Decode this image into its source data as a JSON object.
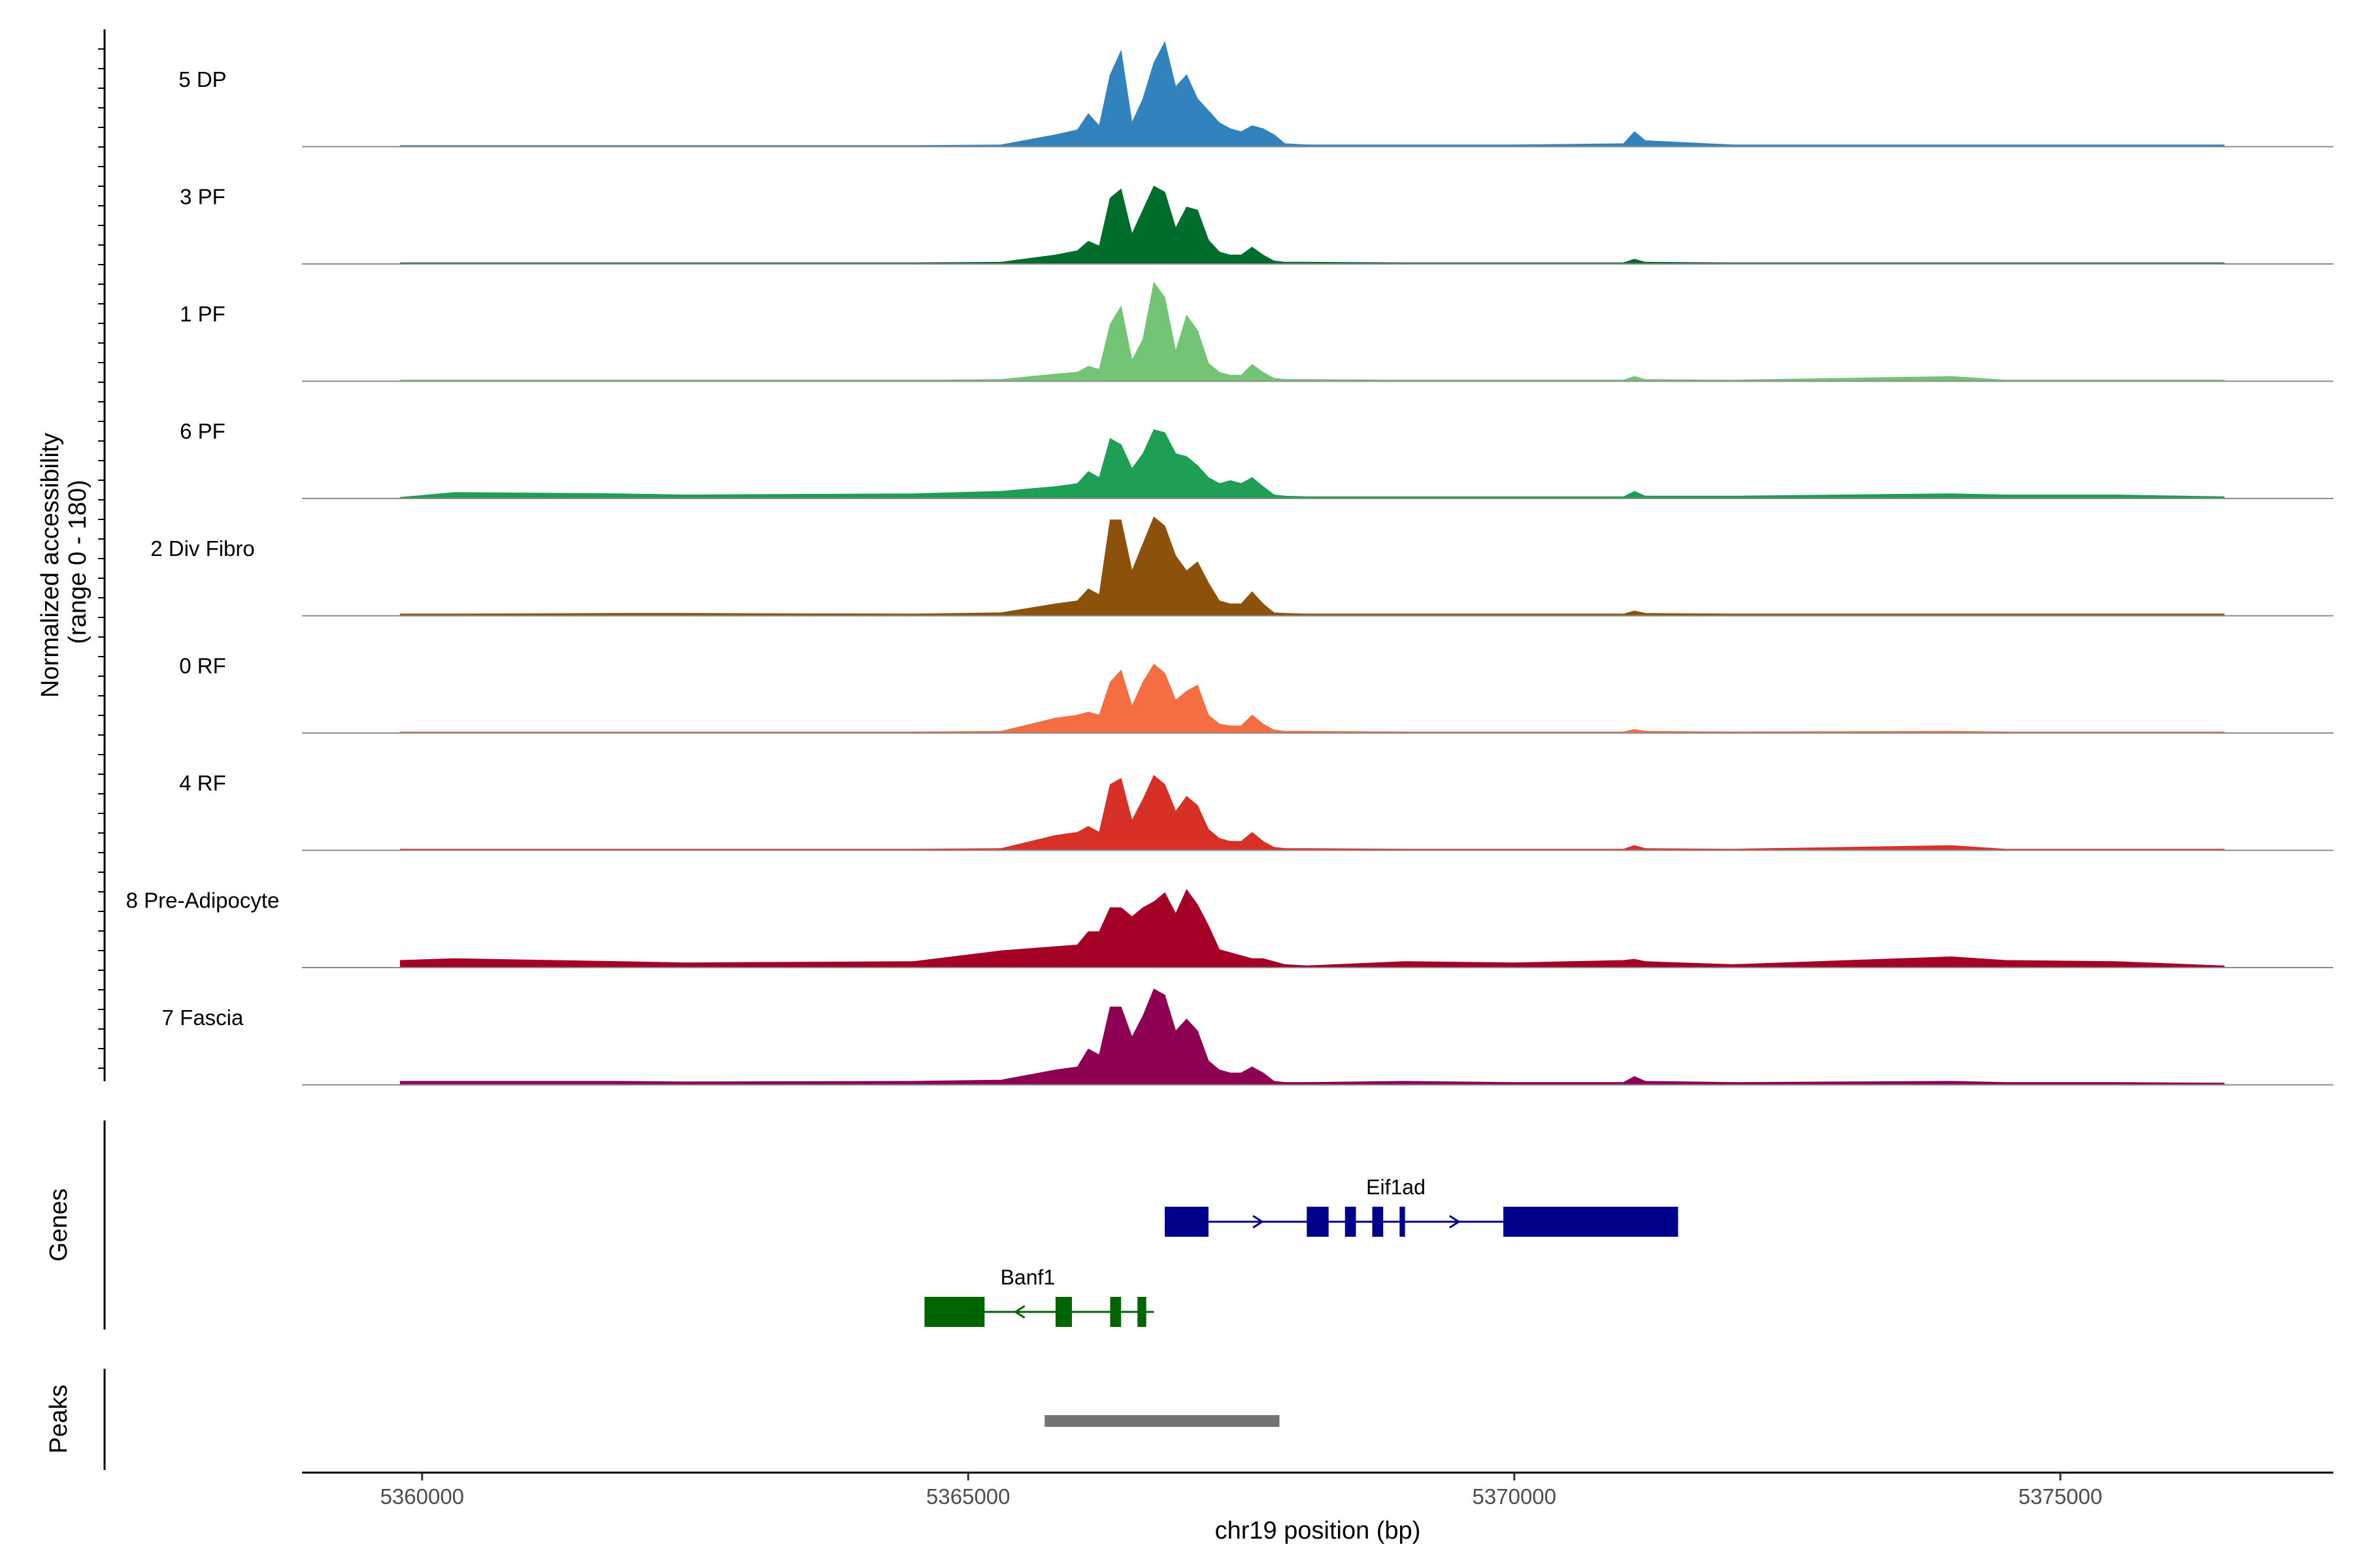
{
  "chart_data": {
    "type": "area",
    "title": "",
    "chromosome": "chr19",
    "xlabel": "chr19 position (bp)",
    "ylabel": "Normalized accessibility\n(range 0 - 180)",
    "y_range": [
      0,
      180
    ],
    "x_range": [
      5358900,
      5377500
    ],
    "x_ticks": [
      5360000,
      5365000,
      5370000,
      5375000
    ],
    "x_tick_labels": [
      "5360000",
      "5365000",
      "5370000",
      "5375000"
    ],
    "profile_x": [
      5359800,
      5360300,
      5361800,
      5362400,
      5364500,
      5365300,
      5365800,
      5366000,
      5366100,
      5366200,
      5366300,
      5366400,
      5366500,
      5366600,
      5366700,
      5366800,
      5366900,
      5367000,
      5367100,
      5367200,
      5367300,
      5367400,
      5367500,
      5367600,
      5367700,
      5367800,
      5367900,
      5368100,
      5369000,
      5370000,
      5371000,
      5371100,
      5371200,
      5372000,
      5374000,
      5374500,
      5375500,
      5376500
    ],
    "tracks": [
      {
        "name": "5 DP",
        "color": "#3182bd",
        "values": [
          2,
          2,
          2,
          2,
          2,
          3,
          20,
          28,
          55,
          35,
          120,
          160,
          40,
          80,
          140,
          175,
          100,
          120,
          80,
          60,
          40,
          30,
          25,
          35,
          30,
          20,
          5,
          3,
          3,
          3,
          5,
          25,
          10,
          3,
          3,
          3,
          3,
          3
        ]
      },
      {
        "name": "3 PF",
        "color": "#006d2c",
        "values": [
          2,
          2,
          2,
          2,
          2,
          3,
          15,
          22,
          38,
          30,
          110,
          125,
          50,
          90,
          130,
          120,
          60,
          95,
          90,
          40,
          20,
          15,
          15,
          28,
          15,
          5,
          3,
          3,
          2,
          2,
          2,
          8,
          3,
          2,
          2,
          2,
          2,
          2
        ]
      },
      {
        "name": "1 PF",
        "color": "#74c476",
        "values": [
          2,
          2,
          2,
          2,
          2,
          3,
          12,
          15,
          25,
          20,
          95,
          125,
          35,
          70,
          165,
          140,
          50,
          110,
          85,
          30,
          15,
          10,
          10,
          28,
          15,
          5,
          3,
          3,
          2,
          2,
          2,
          8,
          3,
          2,
          8,
          2,
          2,
          2
        ]
      },
      {
        "name": "6 PF",
        "color": "#1f9e55",
        "values": [
          2,
          10,
          8,
          6,
          8,
          12,
          20,
          25,
          45,
          35,
          100,
          90,
          50,
          75,
          115,
          110,
          75,
          70,
          55,
          35,
          25,
          30,
          25,
          35,
          20,
          6,
          4,
          3,
          3,
          3,
          3,
          12,
          4,
          4,
          8,
          6,
          6,
          3
        ]
      },
      {
        "name": "2 Div Fibro",
        "color": "#8c510a",
        "values": [
          3,
          3,
          4,
          4,
          3,
          5,
          20,
          25,
          45,
          35,
          160,
          160,
          75,
          120,
          165,
          150,
          100,
          75,
          90,
          55,
          25,
          20,
          20,
          40,
          20,
          5,
          4,
          3,
          3,
          3,
          3,
          8,
          4,
          3,
          3,
          3,
          3,
          3
        ]
      },
      {
        "name": "0 RF",
        "color": "#f46d43",
        "values": [
          2,
          2,
          2,
          2,
          2,
          3,
          25,
          30,
          35,
          30,
          85,
          105,
          45,
          85,
          115,
          100,
          55,
          70,
          80,
          30,
          15,
          12,
          12,
          30,
          15,
          5,
          3,
          3,
          2,
          2,
          2,
          6,
          3,
          2,
          3,
          2,
          2,
          2
        ]
      },
      {
        "name": "4 RF",
        "color": "#d73027",
        "values": [
          2,
          2,
          2,
          2,
          2,
          3,
          25,
          30,
          40,
          30,
          110,
          120,
          50,
          85,
          125,
          110,
          65,
          90,
          75,
          35,
          20,
          15,
          15,
          30,
          15,
          5,
          3,
          3,
          2,
          2,
          2,
          8,
          3,
          2,
          8,
          2,
          2,
          2
        ]
      },
      {
        "name": "8 Pre-Adipocyte",
        "color": "#a50026",
        "values": [
          12,
          15,
          10,
          8,
          10,
          28,
          35,
          38,
          60,
          60,
          100,
          100,
          85,
          100,
          110,
          125,
          90,
          130,
          105,
          70,
          30,
          25,
          20,
          15,
          15,
          10,
          5,
          3,
          10,
          8,
          12,
          14,
          10,
          5,
          18,
          12,
          10,
          3
        ]
      },
      {
        "name": "7 Fascia",
        "color": "#8e0152",
        "values": [
          6,
          6,
          6,
          5,
          6,
          8,
          25,
          30,
          60,
          50,
          130,
          130,
          80,
          115,
          160,
          150,
          90,
          110,
          90,
          40,
          25,
          20,
          20,
          30,
          20,
          6,
          4,
          4,
          6,
          4,
          4,
          14,
          6,
          4,
          6,
          4,
          4,
          3
        ]
      }
    ],
    "genes": [
      {
        "name": "Eif1ad",
        "color": "#00008b",
        "strand": "+",
        "start": 5366800,
        "end": 5371500,
        "exons": [
          [
            5366800,
            5367200
          ],
          [
            5368100,
            5368300
          ],
          [
            5368450,
            5368550
          ],
          [
            5368700,
            5368800
          ],
          [
            5368950,
            5369000
          ],
          [
            5369900,
            5371500
          ]
        ]
      },
      {
        "name": "Banf1",
        "color": "#006400",
        "strand": "-",
        "start": 5364600,
        "end": 5366700,
        "exons": [
          [
            5364600,
            5365150
          ],
          [
            5365800,
            5365950
          ],
          [
            5366300,
            5366400
          ],
          [
            5366550,
            5366630
          ]
        ]
      }
    ],
    "peaks": [
      {
        "start": 5365700,
        "end": 5367850,
        "color": "#737373"
      }
    ],
    "panel_labels": {
      "genes": "Genes",
      "peaks": "Peaks"
    }
  }
}
